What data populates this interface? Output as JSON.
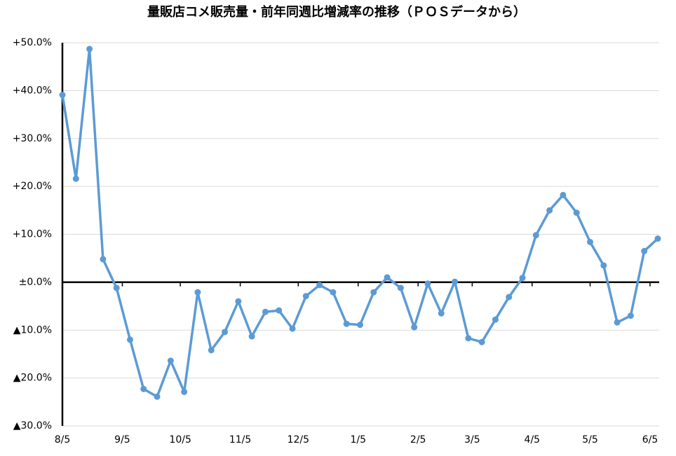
{
  "chart_data": {
    "type": "line",
    "title": "量販店コメ販売量・前年同週比増減率の推移（ＰＯＳデータから）",
    "x": [
      0,
      7,
      14,
      21,
      28,
      35,
      42,
      49,
      56,
      63,
      70,
      77,
      84,
      91,
      98,
      105,
      112,
      119,
      126,
      133,
      140,
      147,
      154,
      161,
      168,
      175,
      182,
      189,
      196,
      203,
      210,
      217,
      224,
      231,
      238,
      245,
      252,
      259,
      266,
      273,
      280,
      287,
      294,
      301,
      308
    ],
    "xlim": [
      0,
      308
    ],
    "xticks": [
      {
        "value": 0,
        "label": "8/5"
      },
      {
        "value": 31,
        "label": "9/5"
      },
      {
        "value": 61,
        "label": "10/5"
      },
      {
        "value": 92,
        "label": "11/5"
      },
      {
        "value": 122,
        "label": "12/5"
      },
      {
        "value": 153,
        "label": "1/5"
      },
      {
        "value": 184,
        "label": "2/5"
      },
      {
        "value": 212,
        "label": "3/5"
      },
      {
        "value": 243,
        "label": "4/5"
      },
      {
        "value": 273,
        "label": "5/5"
      },
      {
        "value": 304,
        "label": "6/5"
      }
    ],
    "series": [
      {
        "color": "#5b9bd5",
        "values": [
          39.1,
          21.6,
          48.7,
          4.8,
          -1.2,
          -12.0,
          -22.3,
          -23.9,
          -16.4,
          -22.9,
          -2.1,
          -14.2,
          -10.4,
          -4.0,
          -11.3,
          -6.2,
          -5.9,
          -9.7,
          -2.9,
          -0.6,
          -2.1,
          -8.7,
          -8.9,
          -2.1,
          1.0,
          -1.2,
          -9.4,
          -0.3,
          -6.5,
          0.1,
          -11.7,
          -12.5,
          -7.8,
          -3.1,
          0.9,
          9.8,
          15.0,
          18.2,
          14.5,
          8.4,
          3.5,
          -8.4,
          -7.0,
          6.5,
          9.1
        ]
      }
    ],
    "ylim": [
      -30,
      50
    ],
    "yticks": [
      {
        "value": -30,
        "label": "▲30.0%"
      },
      {
        "value": -20,
        "label": "▲20.0%"
      },
      {
        "value": -10,
        "label": "▲10.0%"
      },
      {
        "value": 0,
        "label": "±0.0%"
      },
      {
        "value": 10,
        "label": "+10.0%"
      },
      {
        "value": 20,
        "label": "+20.0%"
      },
      {
        "value": 30,
        "label": "+30.0%"
      },
      {
        "value": 40,
        "label": "+40.0%"
      },
      {
        "value": 50,
        "label": "+50.0%"
      }
    ],
    "grid": true
  }
}
